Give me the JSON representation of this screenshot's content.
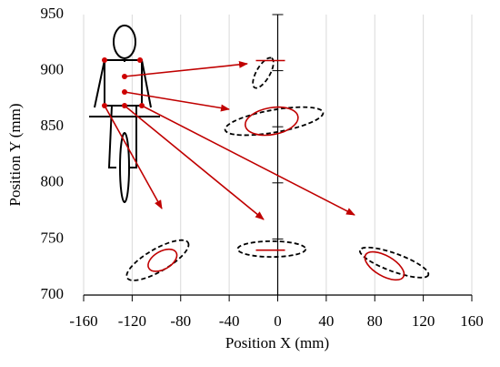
{
  "chart_data": {
    "type": "ellipse",
    "x_label": "Position X (mm)",
    "y_label": "Position Y (mm)",
    "xlim": [
      -160,
      160
    ],
    "xticks": [
      -160,
      -120,
      -80,
      -40,
      0,
      40,
      80,
      120,
      160
    ],
    "ylim": [
      700,
      950
    ],
    "yticks": [
      700,
      750,
      800,
      850,
      900,
      950
    ],
    "grid": true,
    "outer_color": "#000000",
    "inner_color": "#c00000",
    "groups": [
      {
        "outer": {
          "cx": -12,
          "cy": 898,
          "rx": 14,
          "ry": 6,
          "angle": 60
        },
        "inner": {
          "cx": -6,
          "cy": 909,
          "rx": 12,
          "ry": 0,
          "angle": 0
        }
      },
      {
        "outer": {
          "cx": -3,
          "cy": 855,
          "rx": 41,
          "ry": 10,
          "angle": 10
        },
        "inner": {
          "cx": -5,
          "cy": 855,
          "rx": 22,
          "ry": 12,
          "angle": 10
        }
      },
      {
        "outer": {
          "cx": -99,
          "cy": 731,
          "rx": 29,
          "ry": 10,
          "angle": 30
        },
        "inner": {
          "cx": -95,
          "cy": 731,
          "rx": 13,
          "ry": 8,
          "angle": 30
        }
      },
      {
        "outer": {
          "cx": -5,
          "cy": 741,
          "rx": 28,
          "ry": 7,
          "angle": 0
        },
        "inner": {
          "cx": -6,
          "cy": 740,
          "rx": 12,
          "ry": 0,
          "angle": 0
        }
      },
      {
        "outer": {
          "cx": 96,
          "cy": 729,
          "rx": 30,
          "ry": 8,
          "angle": -20
        },
        "inner": {
          "cx": 88,
          "cy": 726,
          "rx": 18,
          "ry": 9,
          "angle": -30
        }
      }
    ]
  }
}
